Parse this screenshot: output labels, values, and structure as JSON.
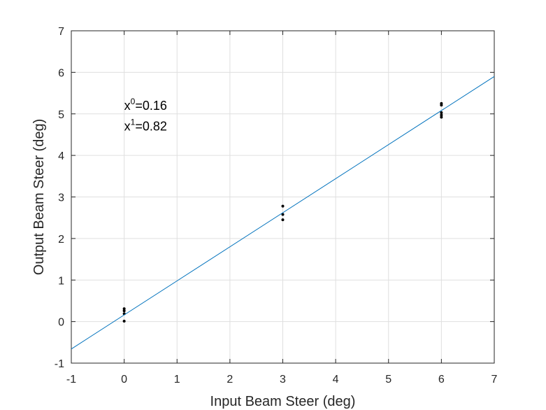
{
  "chart_data": {
    "type": "scatter",
    "title": "",
    "xlabel": "Input Beam Steer (deg)",
    "ylabel": "Output Beam Steer (deg)",
    "xlim": [
      -1,
      7
    ],
    "ylim": [
      -1,
      7
    ],
    "xticks": [
      "-1",
      "0",
      "1",
      "2",
      "3",
      "4",
      "5",
      "6",
      "7"
    ],
    "yticks": [
      "-1",
      "0",
      "1",
      "2",
      "3",
      "4",
      "5",
      "6",
      "7"
    ],
    "grid": true,
    "series": [
      {
        "type": "scatter",
        "color": "#000000",
        "points": [
          {
            "x": 0,
            "y": 0.31
          },
          {
            "x": 0,
            "y": 0.26
          },
          {
            "x": 0,
            "y": 0.19
          },
          {
            "x": 0,
            "y": 0.01
          },
          {
            "x": 3,
            "y": 2.78
          },
          {
            "x": 3,
            "y": 2.58
          },
          {
            "x": 3,
            "y": 2.45
          },
          {
            "x": 6,
            "y": 5.25
          },
          {
            "x": 6,
            "y": 5.21
          },
          {
            "x": 6,
            "y": 5.03
          },
          {
            "x": 6,
            "y": 4.97
          },
          {
            "x": 6,
            "y": 4.92
          }
        ]
      },
      {
        "type": "line",
        "color": "#0072bd",
        "intercept": 0.16,
        "slope": 0.82,
        "x": [
          -1,
          7
        ]
      }
    ],
    "annotations": [
      {
        "base": "x",
        "sup": "0",
        "text": "=0.16",
        "x": 0,
        "y": 5.1
      },
      {
        "base": "x",
        "sup": "1",
        "text": "=0.82",
        "x": 0,
        "y": 4.6
      }
    ]
  }
}
